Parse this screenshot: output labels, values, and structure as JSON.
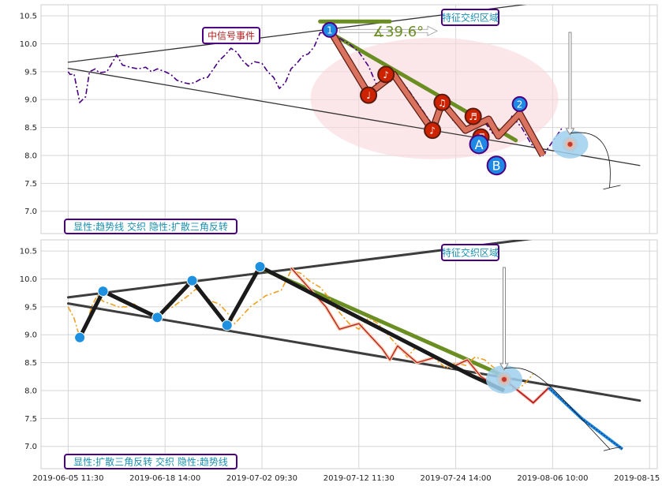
{
  "chart_data": [
    {
      "type": "line",
      "panel": "top",
      "ylim": [
        6.6,
        10.7
      ],
      "yticks": [
        7.0,
        7.5,
        8.0,
        8.5,
        9.0,
        9.5,
        10.0,
        10.5
      ],
      "ytick_labels": [
        "7.0",
        "7.5",
        "8.0",
        "8.5",
        "9.0",
        "9.5",
        "10.0",
        "10.5"
      ],
      "grid": true,
      "series": [
        {
          "color": "#4b0082",
          "style": "dash-dot",
          "points": [
            [
              0.0,
              9.5
            ],
            [
              0.1,
              9.45
            ],
            [
              0.3,
              9.46
            ],
            [
              0.6,
              8.95
            ],
            [
              0.9,
              9.05
            ],
            [
              1.1,
              9.5
            ],
            [
              1.4,
              9.55
            ],
            [
              1.6,
              9.48
            ],
            [
              2.0,
              9.5
            ],
            [
              2.5,
              9.8
            ],
            [
              2.8,
              9.62
            ],
            [
              3.2,
              9.58
            ],
            [
              3.6,
              9.55
            ],
            [
              4.0,
              9.58
            ],
            [
              4.3,
              9.5
            ],
            [
              4.6,
              9.55
            ],
            [
              5.0,
              9.5
            ],
            [
              5.3,
              9.45
            ],
            [
              5.6,
              9.35
            ],
            [
              6.0,
              9.3
            ],
            [
              6.3,
              9.28
            ],
            [
              6.6,
              9.32
            ],
            [
              6.9,
              9.38
            ],
            [
              7.2,
              9.4
            ],
            [
              7.5,
              9.55
            ],
            [
              7.8,
              9.7
            ],
            [
              8.1,
              9.8
            ],
            [
              8.4,
              9.92
            ],
            [
              8.7,
              9.85
            ],
            [
              9.0,
              9.7
            ],
            [
              9.3,
              9.6
            ],
            [
              9.6,
              9.68
            ],
            [
              10.0,
              9.65
            ],
            [
              10.3,
              9.5
            ],
            [
              10.6,
              9.4
            ],
            [
              10.9,
              9.2
            ],
            [
              11.2,
              9.3
            ],
            [
              11.5,
              9.55
            ],
            [
              11.8,
              9.65
            ],
            [
              12.1,
              9.78
            ],
            [
              12.4,
              9.82
            ],
            [
              12.7,
              9.95
            ],
            [
              13.0,
              10.2
            ],
            [
              13.5,
              10.18
            ],
            [
              14.0,
              10.1
            ],
            [
              14.5,
              10.0
            ],
            [
              15.0,
              9.85
            ],
            [
              15.5,
              9.6
            ],
            [
              16.0,
              9.2
            ],
            [
              16.5,
              9.3
            ],
            [
              17.0,
              9.42
            ],
            [
              17.5,
              9.2
            ],
            [
              18.0,
              8.95
            ],
            [
              18.5,
              8.7
            ],
            [
              18.9,
              8.5
            ],
            [
              19.4,
              8.95
            ],
            [
              19.9,
              8.6
            ],
            [
              20.4,
              8.5
            ],
            [
              20.9,
              8.55
            ],
            [
              21.4,
              8.65
            ],
            [
              21.9,
              8.4
            ],
            [
              22.4,
              8.35
            ],
            [
              22.9,
              8.7
            ],
            [
              23.4,
              8.5
            ],
            [
              23.9,
              8.2
            ],
            [
              24.5,
              8.0
            ],
            [
              25.0,
              8.25
            ],
            [
              25.5,
              8.5
            ]
          ]
        },
        {
          "color": "#d9735f",
          "style": "thick-zigzag",
          "points": [
            [
              13.5,
              10.25
            ],
            [
              15.5,
              9.1
            ],
            [
              16.8,
              9.45
            ],
            [
              18.8,
              8.45
            ],
            [
              19.3,
              8.95
            ],
            [
              20.5,
              8.45
            ],
            [
              21.7,
              8.65
            ],
            [
              22.2,
              8.35
            ],
            [
              23.3,
              8.75
            ],
            [
              24.5,
              8.0
            ]
          ]
        }
      ],
      "trendlines": [
        {
          "from": [
            0.0,
            9.67
          ],
          "to": [
            30.3,
            11.0
          ],
          "color": "#333333"
        },
        {
          "from": [
            0.0,
            9.56
          ],
          "to": [
            29.5,
            7.82
          ],
          "color": "#333333"
        },
        {
          "from": [
            13.5,
            10.2
          ],
          "to": [
            23.1,
            8.27
          ],
          "color": "#6b8e23",
          "width": "thick"
        },
        {
          "from": [
            13.0,
            10.4
          ],
          "to": [
            16.6,
            10.4
          ],
          "color": "#6b8e23",
          "width": "thick"
        }
      ],
      "numbered_markers": [
        {
          "x": 13.5,
          "y": 10.25,
          "label": "1",
          "color": "#1e88e5",
          "size": "small"
        },
        {
          "x": 21.2,
          "y": 8.2,
          "label": "A",
          "color": "#1e88e5",
          "size": "large"
        },
        {
          "x": 23.3,
          "y": 8.92,
          "label": "2",
          "color": "#1e88e5",
          "size": "small"
        },
        {
          "x": 22.1,
          "y": 7.82,
          "label": "B",
          "color": "#1e88e5",
          "size": "large"
        }
      ],
      "note_markers": [
        {
          "x": 15.5,
          "y": 9.08,
          "glyph": "♩"
        },
        {
          "x": 16.4,
          "y": 9.45,
          "glyph": "♪"
        },
        {
          "x": 18.8,
          "y": 8.45,
          "glyph": "♪"
        },
        {
          "x": 19.3,
          "y": 8.95,
          "glyph": "♫"
        },
        {
          "x": 20.9,
          "y": 8.7,
          "glyph": "♬"
        },
        {
          "x": 21.3,
          "y": 8.33,
          "glyph": "♬"
        }
      ],
      "angle_label": "∡39.6°",
      "event_label": "中信号事件",
      "region_label": "特征交织区域",
      "bottom_label": "显性:趋势线 交织 隐性:扩散三角反转",
      "target_point": [
        25.9,
        8.2
      ]
    },
    {
      "type": "line",
      "panel": "bottom",
      "ylim": [
        6.6,
        10.7
      ],
      "yticks": [
        7.0,
        7.5,
        8.0,
        8.5,
        9.0,
        9.5,
        10.0,
        10.5
      ],
      "ytick_labels": [
        "7.0",
        "7.5",
        "8.0",
        "8.5",
        "9.0",
        "9.5",
        "10.0",
        "10.5"
      ],
      "grid": true,
      "series": [
        {
          "color": "#f0a020",
          "style": "dash-dot",
          "points": [
            [
              0.0,
              9.5
            ],
            [
              0.3,
              9.3
            ],
            [
              0.6,
              8.95
            ],
            [
              0.9,
              9.1
            ],
            [
              1.2,
              9.5
            ],
            [
              1.5,
              9.7
            ],
            [
              1.8,
              9.6
            ],
            [
              2.2,
              9.55
            ],
            [
              2.6,
              9.5
            ],
            [
              3.0,
              9.5
            ],
            [
              3.4,
              9.55
            ],
            [
              3.8,
              9.45
            ],
            [
              4.2,
              9.4
            ],
            [
              4.6,
              9.35
            ],
            [
              5.0,
              9.45
            ],
            [
              5.4,
              9.5
            ],
            [
              5.8,
              9.6
            ],
            [
              6.2,
              9.7
            ],
            [
              6.6,
              9.82
            ],
            [
              7.0,
              9.7
            ],
            [
              7.4,
              9.6
            ],
            [
              7.8,
              9.55
            ],
            [
              8.2,
              9.4
            ],
            [
              8.6,
              9.2
            ],
            [
              9.0,
              9.35
            ],
            [
              9.4,
              9.5
            ],
            [
              9.8,
              9.6
            ],
            [
              10.2,
              9.7
            ],
            [
              10.6,
              9.75
            ],
            [
              11.0,
              9.8
            ],
            [
              11.5,
              10.15
            ],
            [
              12.0,
              10.1
            ],
            [
              12.5,
              9.95
            ],
            [
              13.0,
              9.85
            ],
            [
              13.5,
              9.65
            ],
            [
              14.0,
              9.4
            ],
            [
              14.5,
              9.2
            ],
            [
              15.0,
              9.1
            ],
            [
              15.5,
              9.3
            ],
            [
              16.0,
              9.2
            ],
            [
              16.5,
              9.0
            ],
            [
              17.0,
              8.8
            ],
            [
              17.5,
              8.6
            ],
            [
              18.0,
              8.8
            ],
            [
              18.5,
              8.7
            ],
            [
              19.0,
              8.55
            ],
            [
              19.5,
              8.4
            ],
            [
              20.0,
              8.5
            ],
            [
              20.5,
              8.45
            ],
            [
              21.0,
              8.6
            ],
            [
              21.5,
              8.55
            ],
            [
              22.0,
              8.4
            ],
            [
              22.5,
              8.2
            ],
            [
              23.0,
              8.0
            ],
            [
              23.5,
              8.1
            ],
            [
              24.0,
              8.3
            ]
          ]
        },
        {
          "color": "#b71c1c",
          "style": "thin-zigzag",
          "points": [
            [
              11.5,
              10.2
            ],
            [
              13.3,
              9.5
            ],
            [
              14.0,
              9.1
            ],
            [
              15.0,
              9.2
            ],
            [
              16.2,
              8.75
            ],
            [
              16.6,
              8.55
            ],
            [
              17.0,
              8.8
            ],
            [
              18.0,
              8.5
            ],
            [
              19.0,
              8.6
            ],
            [
              19.8,
              8.42
            ],
            [
              20.6,
              8.55
            ],
            [
              21.3,
              8.25
            ],
            [
              22.0,
              8.1
            ],
            [
              22.5,
              8.0
            ]
          ]
        },
        {
          "color": "#1a1a1a",
          "style": "thick-zigzag",
          "points": [
            [
              0.6,
              8.95
            ],
            [
              1.8,
              9.78
            ],
            [
              4.6,
              9.31
            ],
            [
              6.4,
              9.97
            ],
            [
              8.2,
              9.17
            ],
            [
              9.9,
              10.22
            ],
            [
              20.8,
              8.27
            ],
            [
              22.5,
              8.0
            ]
          ]
        },
        {
          "color": "#b71c1c",
          "style": "projection",
          "points": [
            [
              22.5,
              8.2
            ],
            [
              24.0,
              7.78
            ],
            [
              24.8,
              8.05
            ]
          ]
        },
        {
          "color": "#1e88e5",
          "style": "projection-dashed",
          "points": [
            [
              24.8,
              8.05
            ],
            [
              26.5,
              7.5
            ],
            [
              28.6,
              6.95
            ]
          ]
        }
      ],
      "trendlines": [
        {
          "from": [
            0.0,
            9.67
          ],
          "to": [
            30.3,
            11.0
          ],
          "color": "#333333",
          "width": "thick"
        },
        {
          "from": [
            0.0,
            9.56
          ],
          "to": [
            29.5,
            7.82
          ],
          "color": "#333333",
          "width": "thick"
        },
        {
          "from": [
            9.9,
            10.2
          ],
          "to": [
            22.5,
            8.26
          ],
          "color": "#6b8e23",
          "width": "thick"
        }
      ],
      "pivot_points": [
        [
          0.6,
          8.95
        ],
        [
          1.8,
          9.78
        ],
        [
          4.6,
          9.31
        ],
        [
          6.4,
          9.97
        ],
        [
          8.2,
          9.17
        ],
        [
          9.9,
          10.22
        ],
        [
          22.5,
          8.2
        ]
      ],
      "region_label": "特征交织区域",
      "bottom_label": "显性:扩散三角反转 交织 隐性:趋势线",
      "target_point": [
        22.5,
        8.2
      ]
    }
  ],
  "x_axis": {
    "xlim": [
      -1.4,
      30.4
    ],
    "ticks": [
      0,
      5,
      10,
      15,
      20,
      25,
      30
    ],
    "tick_labels": [
      "2019-06-05 11:30",
      "2019-06-18 14:00",
      "2019-07-02 09:30",
      "2019-07-12 11:30",
      "2019-07-24 14:00",
      "2019-08-06 10:00",
      "2019-08-15 14:00"
    ]
  },
  "colors": {
    "grid": "#d6d6d6",
    "label_box_border": "#4b0082",
    "label_text": "#1b8fb0",
    "event_text": "#b71c1c",
    "highlight_ellipse": "#f8d7dc",
    "target_halo": "#9fd0ee",
    "trend_green": "#6b8e23"
  }
}
